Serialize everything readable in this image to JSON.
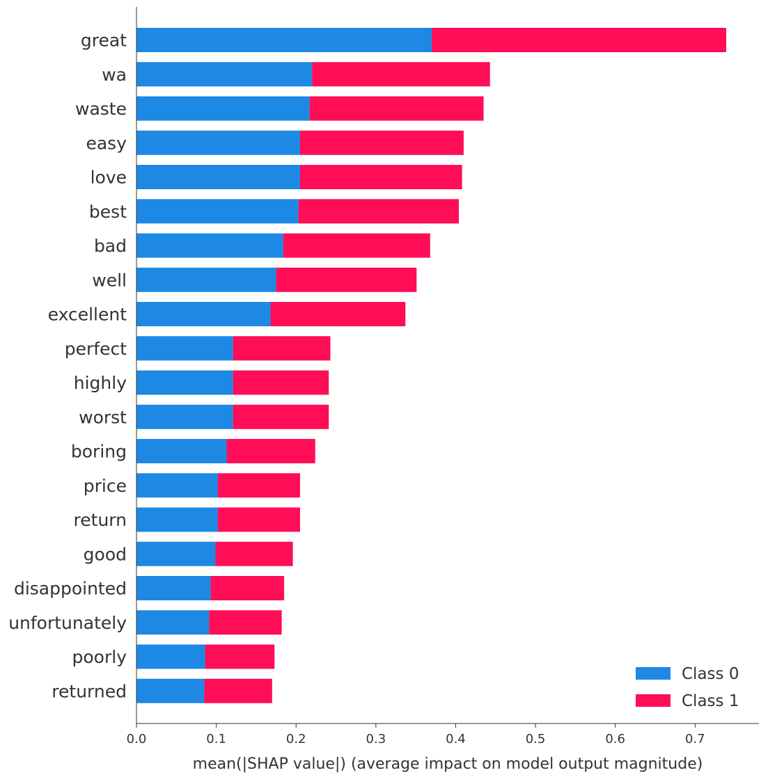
{
  "chart_data": {
    "type": "bar",
    "orientation": "horizontal",
    "stacked": true,
    "categories": [
      "great",
      "wa",
      "waste",
      "easy",
      "love",
      "best",
      "bad",
      "well",
      "excellent",
      "perfect",
      "highly",
      "worst",
      "boring",
      "price",
      "return",
      "good",
      "disappointed",
      "unfortunately",
      "poorly",
      "returned"
    ],
    "series": [
      {
        "name": "Class 0",
        "color": "#1e88e5",
        "values": [
          0.37,
          0.22,
          0.217,
          0.205,
          0.205,
          0.203,
          0.184,
          0.175,
          0.168,
          0.121,
          0.121,
          0.121,
          0.113,
          0.102,
          0.102,
          0.099,
          0.093,
          0.091,
          0.086,
          0.085
        ]
      },
      {
        "name": "Class 1",
        "color": "#ff0d57",
        "values": [
          0.369,
          0.223,
          0.218,
          0.205,
          0.203,
          0.201,
          0.184,
          0.176,
          0.169,
          0.122,
          0.12,
          0.12,
          0.111,
          0.103,
          0.103,
          0.097,
          0.092,
          0.091,
          0.087,
          0.085
        ]
      }
    ],
    "xlabel": "mean(|SHAP value|) (average impact on model output magnitude)",
    "xlim": [
      0.0,
      0.78
    ],
    "xticks": [
      "0.0",
      "0.1",
      "0.2",
      "0.3",
      "0.4",
      "0.5",
      "0.6",
      "0.7"
    ],
    "legend": {
      "position": "bottom-right"
    },
    "grid": false
  }
}
